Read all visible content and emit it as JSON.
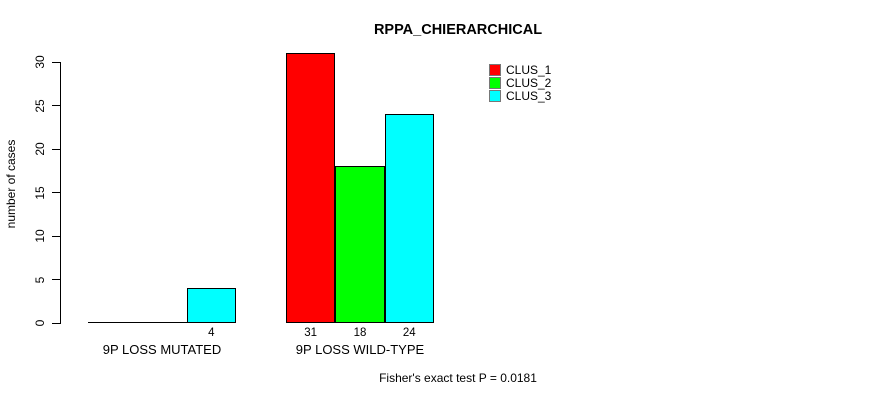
{
  "chart_data": {
    "type": "bar",
    "title": "RPPA_CHIERARCHICAL",
    "xlabel": "",
    "ylabel": "number of cases",
    "categories": [
      "9P LOSS MUTATED",
      "9P LOSS WILD-TYPE"
    ],
    "series": [
      {
        "name": "CLUS_1",
        "color": "#FF0000",
        "values": [
          0,
          31
        ]
      },
      {
        "name": "CLUS_2",
        "color": "#00FF00",
        "values": [
          0,
          18
        ]
      },
      {
        "name": "CLUS_3",
        "color": "#00FFFF",
        "values": [
          4,
          24
        ]
      }
    ],
    "bar_value_labels": [
      [
        "",
        "",
        "4"
      ],
      [
        "31",
        "18",
        "24"
      ]
    ],
    "yticks": [
      0,
      5,
      10,
      15,
      20,
      25,
      30
    ],
    "ylim": [
      0,
      31
    ],
    "grid": false,
    "legend_position": "top-right",
    "legend_items": [
      {
        "label": "CLUS_1",
        "color": "#FF0000"
      },
      {
        "label": "CLUS_2",
        "color": "#00FF00"
      },
      {
        "label": "CLUS_3",
        "color": "#00FFFF"
      }
    ],
    "annotation": "Fisher's exact test P = 0.0181"
  }
}
